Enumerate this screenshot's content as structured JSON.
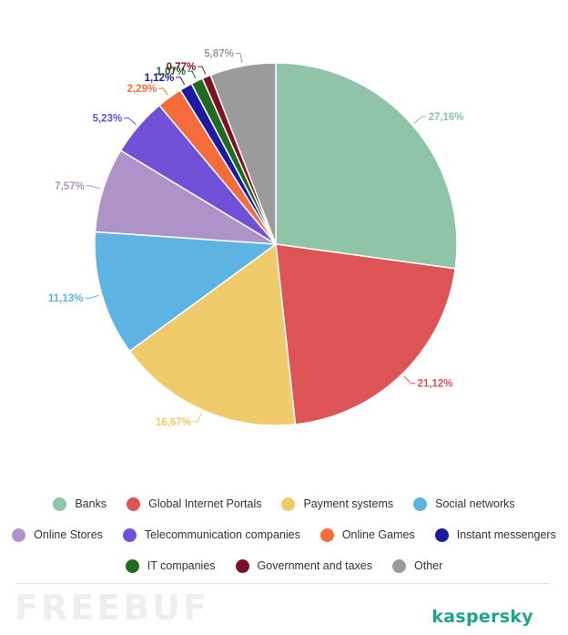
{
  "chart_data": {
    "type": "pie",
    "title": "",
    "categories": [
      "Banks",
      "Global Internet Portals",
      "Payment systems",
      "Social networks",
      "Online Stores",
      "Telecommunication companies",
      "Online Games",
      "Instant messengers",
      "IT companies",
      "Government and taxes",
      "Other"
    ],
    "values": [
      27.16,
      21.12,
      16.67,
      11.13,
      7.57,
      5.23,
      2.29,
      1.12,
      1.07,
      0.77,
      5.87
    ],
    "data_labels": [
      "27,16%",
      "21,12%",
      "16,67%",
      "11,13%",
      "7,57%",
      "5,23%",
      "2,29%",
      "1,12%",
      "1,07%",
      "0,77%",
      "5,87%"
    ],
    "colors": [
      "#8fc4a8",
      "#dd5356",
      "#efcb6c",
      "#5db4e2",
      "#ad93c8",
      "#6f50d6",
      "#f46c3c",
      "#1c1ba0",
      "#1f6b24",
      "#7d1223",
      "#9b9b9b"
    ],
    "start_angle": "12 o'clock",
    "direction": "clockwise",
    "legend_position": "bottom"
  },
  "branding": {
    "logo_text": "kaspersky",
    "watermark_text": "FREEBUF"
  }
}
